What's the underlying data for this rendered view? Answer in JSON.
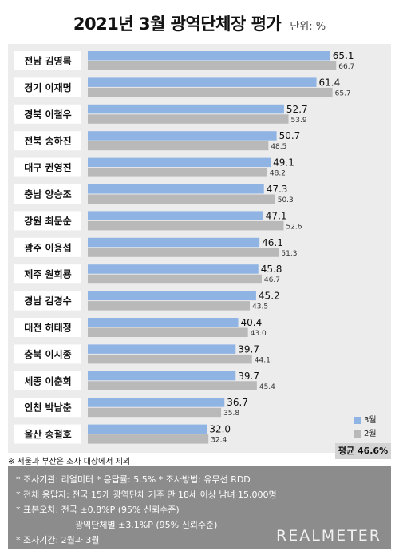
{
  "title": "2021년 3월 광역단체장 평가",
  "unit": "단위: %",
  "chart_data": {
    "type": "bar",
    "orientation": "horizontal",
    "categories": [
      "전남 김영록",
      "경기 이재명",
      "경북 이철우",
      "전북 송하진",
      "대구 권영진",
      "충남 양승조",
      "강원 최문순",
      "광주 이용섭",
      "제주 원희룡",
      "경남 김경수",
      "대전 허태정",
      "충북 이시종",
      "세종 이춘희",
      "인천 박남춘",
      "울산 송철호"
    ],
    "series": [
      {
        "name": "3월",
        "color": "#8fb4e3",
        "values": [
          65.1,
          61.4,
          52.7,
          50.7,
          49.1,
          47.3,
          47.1,
          46.1,
          45.8,
          45.2,
          40.4,
          39.7,
          39.7,
          36.7,
          32.0
        ],
        "labels": [
          "65.1",
          "61.4",
          "52.7",
          "50.7",
          "49.1",
          "47.3",
          "47.1",
          "46.1",
          "45.8",
          "45.2",
          "40.4",
          "39.7",
          "39.7",
          "36.7",
          "32.0"
        ]
      },
      {
        "name": "2월",
        "color": "#b9b9b9",
        "values": [
          66.7,
          65.7,
          53.9,
          48.5,
          48.2,
          50.3,
          52.6,
          51.3,
          46.7,
          43.5,
          43.0,
          44.1,
          45.4,
          35.8,
          32.4
        ],
        "labels": [
          "66.7",
          "65.7",
          "53.9",
          "48.5",
          "48.2",
          "50.3",
          "52.6",
          "51.3",
          "46.7",
          "43.5",
          "43.0",
          "44.1",
          "45.4",
          "35.8",
          "32.4"
        ]
      }
    ],
    "xlim": [
      0,
      75
    ],
    "legend_position": "bottom-right",
    "grid": false
  },
  "footnote": "※ 서울과 부산은 조사 대상에서 제외",
  "average": "평균 46.6%",
  "info": {
    "line1": "* 조사기관: 리얼미터      * 응답률: 5.5%      * 조사방법: 유무선 RDD",
    "line2": "* 전체 응답자: 전국 15개 광역단체 거주 만 18세 이상 남녀 15,000명",
    "line3": "* 표본오차: 전국 ±0.8%P (95% 신뢰수준)",
    "line4": "광역단체별 ±3.1%P (95% 신뢰수준)",
    "line5": "* 조사기간: 2월과 3월"
  },
  "brand": "REALMETER"
}
